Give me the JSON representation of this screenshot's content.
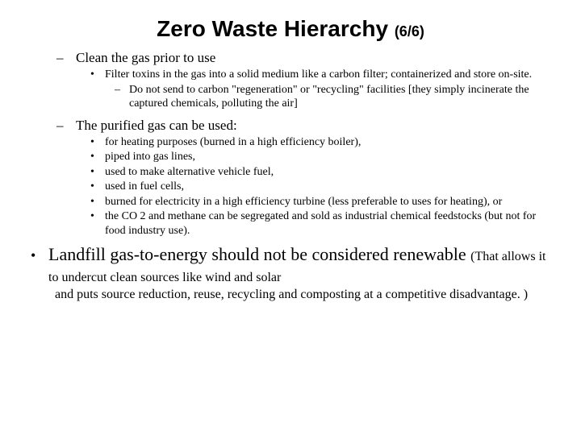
{
  "title": {
    "main": "Zero Waste Hierarchy",
    "page": "(6/6)",
    "fontsize_main": 28,
    "fontsize_page": 18,
    "font_family": "Arial",
    "font_weight": "bold",
    "color": "#000000"
  },
  "background_color": "#ffffff",
  "text_color": "#000000",
  "body_font_family": "Times New Roman",
  "sections": {
    "clean_gas": {
      "label": "Clean the gas prior to use",
      "fontsize": 17,
      "sub": {
        "filter": "Filter toxins in the gas into a solid medium like a carbon filter; containerized and store on-site.",
        "filter_sub": "Do not send to carbon \"regeneration\" or \"recycling\" facilities [they simply incinerate the captured chemicals, polluting the air]",
        "fontsize": 14
      }
    },
    "purified_gas": {
      "label": "The purified gas can be used:",
      "fontsize": 17,
      "items": [
        "for heating purposes (burned in a high efficiency boiler),",
        "piped into gas lines,",
        "used to make alternative vehicle fuel,",
        "used in fuel cells,",
        "burned for electricity in a high efficiency turbine (less preferable to uses for heating), or",
        "the CO 2 and methane can be segregated and sold as industrial chemical feedstocks (but not for food industry use)."
      ],
      "item_fontsize": 14
    },
    "landfill": {
      "main": "Landfill gas-to-energy should not be considered renewable",
      "trailing": "(That allows it to undercut clean sources like wind and solar",
      "continuation": "and puts source reduction, reuse, recycling and composting at a competitive disadvantage. )",
      "fontsize_main": 22,
      "fontsize_trailing": 16
    }
  },
  "bullets": {
    "dash": "–",
    "dot": "•"
  }
}
